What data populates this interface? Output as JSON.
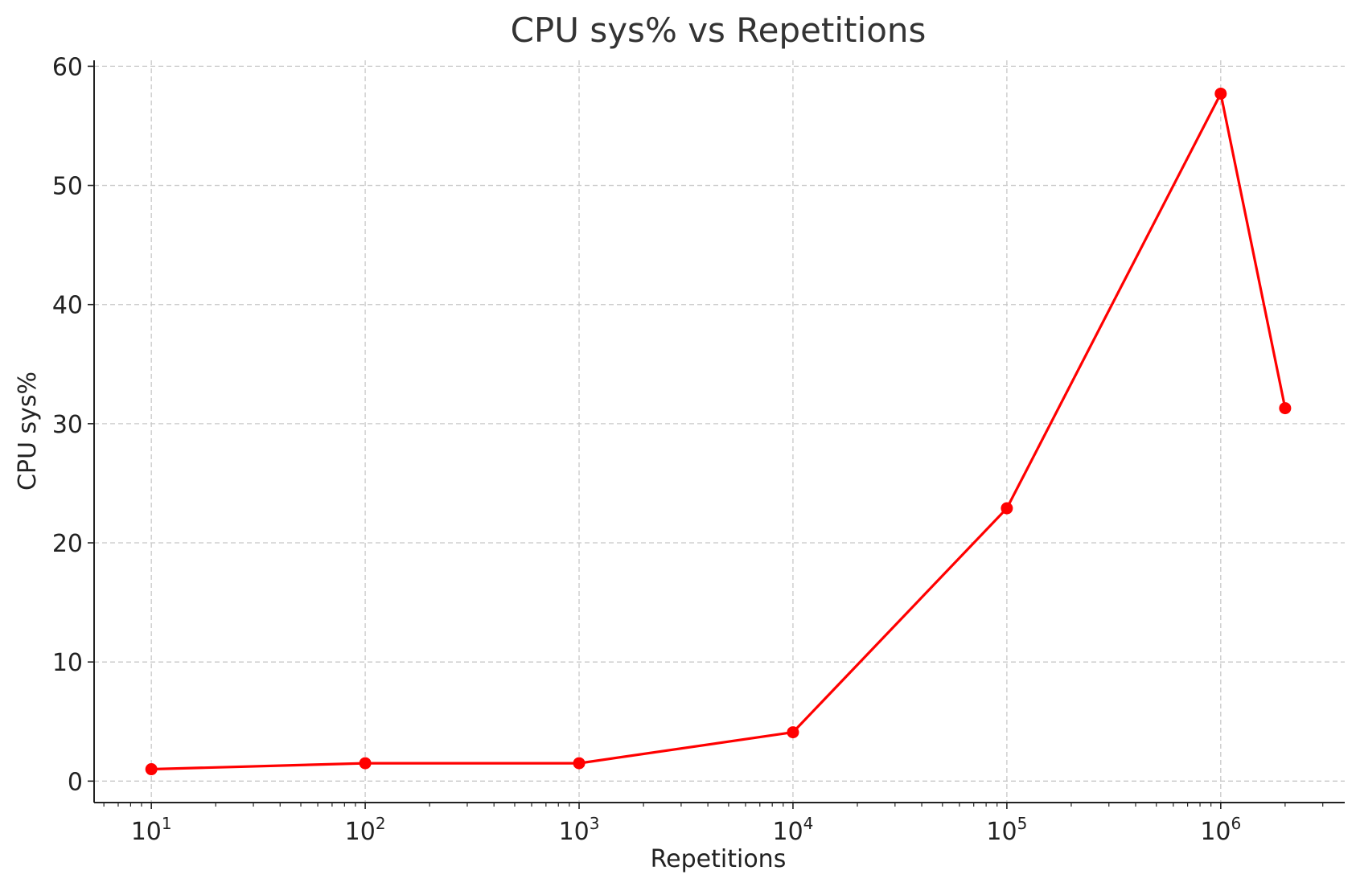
{
  "chart_data": {
    "type": "line",
    "title": "CPU sys% vs Repetitions",
    "xlabel": "Repetitions",
    "ylabel": "CPU sys%",
    "x_scale": "log",
    "xlim": [
      5.4,
      3800000
    ],
    "ylim": [
      -1.8,
      60.5
    ],
    "x_ticks": [
      {
        "value": 10,
        "base": "10",
        "exp": "1"
      },
      {
        "value": 100,
        "base": "10",
        "exp": "2"
      },
      {
        "value": 1000,
        "base": "10",
        "exp": "3"
      },
      {
        "value": 10000,
        "base": "10",
        "exp": "4"
      },
      {
        "value": 100000,
        "base": "10",
        "exp": "5"
      },
      {
        "value": 1000000,
        "base": "10",
        "exp": "6"
      }
    ],
    "y_ticks": [
      0,
      10,
      20,
      30,
      40,
      50,
      60
    ],
    "grid": true,
    "series": [
      {
        "color": "#ff0000",
        "x": [
          10,
          100,
          1000,
          10000,
          100000,
          1000000,
          2000000
        ],
        "y": [
          1.0,
          1.5,
          1.5,
          4.1,
          22.9,
          57.7,
          31.3
        ]
      }
    ]
  }
}
